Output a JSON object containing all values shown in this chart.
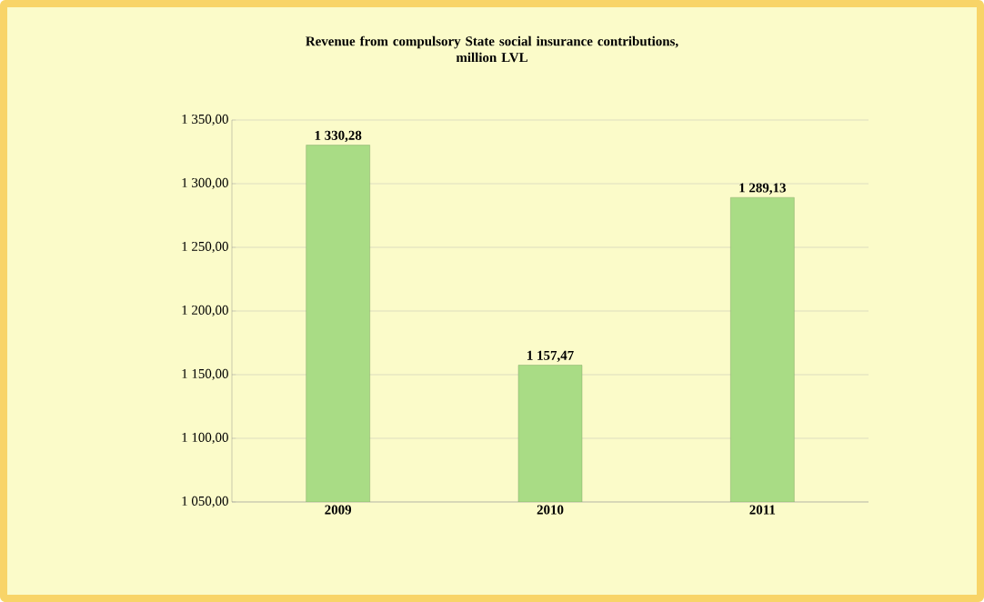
{
  "chart_data": {
    "type": "bar",
    "title": "Revenue from compulsory  State social insurance contributions,\nmillion LVL",
    "categories": [
      "2009",
      "2010",
      "2011"
    ],
    "values": [
      1330.28,
      1157.47,
      1289.13
    ],
    "value_labels": [
      "1 330,28",
      "1 157,47",
      "1 289,13"
    ],
    "color": "#a9dc85",
    "ylim": [
      1050,
      1350
    ],
    "yticks": [
      {
        "value": 1050,
        "label": "1 050,00"
      },
      {
        "value": 1100,
        "label": "1 100,00"
      },
      {
        "value": 1150,
        "label": "1 150,00"
      },
      {
        "value": 1200,
        "label": "1 200,00"
      },
      {
        "value": 1250,
        "label": "1 250,00"
      },
      {
        "value": 1300,
        "label": "1 300,00"
      },
      {
        "value": 1350,
        "label": "1 350,00"
      }
    ],
    "grid": "y"
  }
}
